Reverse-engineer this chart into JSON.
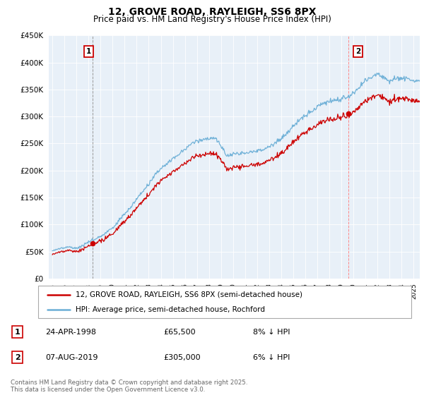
{
  "title": "12, GROVE ROAD, RAYLEIGH, SS6 8PX",
  "subtitle": "Price paid vs. HM Land Registry's House Price Index (HPI)",
  "legend_line1": "12, GROVE ROAD, RAYLEIGH, SS6 8PX (semi-detached house)",
  "legend_line2": "HPI: Average price, semi-detached house, Rochford",
  "annotation1_date": "24-APR-1998",
  "annotation1_price": "£65,500",
  "annotation1_hpi": "8% ↓ HPI",
  "annotation2_date": "07-AUG-2019",
  "annotation2_price": "£305,000",
  "annotation2_hpi": "6% ↓ HPI",
  "footnote": "Contains HM Land Registry data © Crown copyright and database right 2025.\nThis data is licensed under the Open Government Licence v3.0.",
  "hpi_color": "#6aaed6",
  "price_color": "#cc0000",
  "vline1_color": "#aaaaaa",
  "vline2_color": "#ff9999",
  "chart_bg": "#e8f0f8",
  "ylim": [
    0,
    450000
  ],
  "yticks": [
    0,
    50000,
    100000,
    150000,
    200000,
    250000,
    300000,
    350000,
    400000,
    450000
  ],
  "ytick_labels": [
    "£0",
    "£50K",
    "£100K",
    "£150K",
    "£200K",
    "£250K",
    "£300K",
    "£350K",
    "£400K",
    "£450K"
  ],
  "sale1_x": 1998.31,
  "sale1_y": 65500,
  "sale2_x": 2019.59,
  "sale2_y": 305000,
  "xlim_left": 1994.7,
  "xlim_right": 2025.5
}
